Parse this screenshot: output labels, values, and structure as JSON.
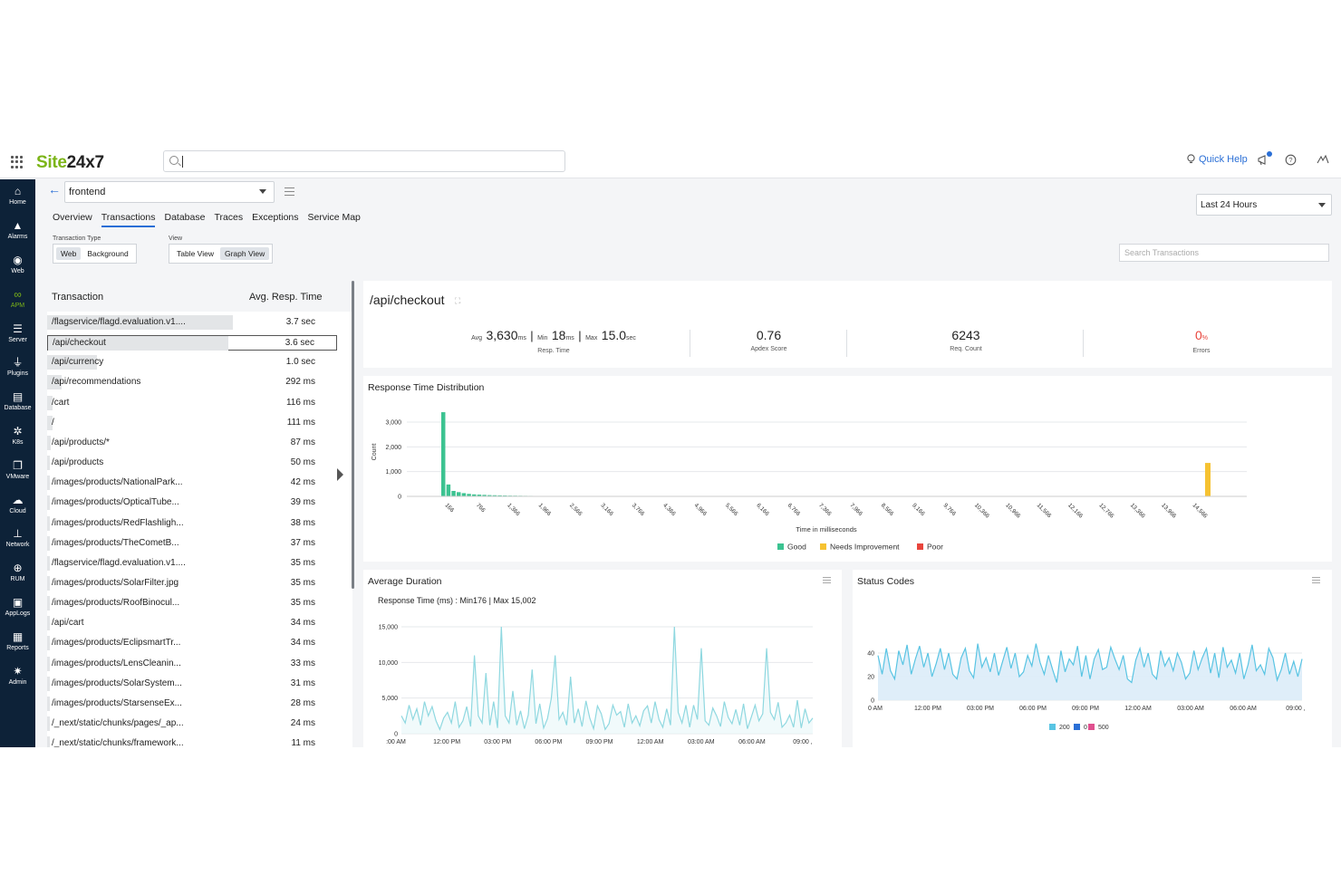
{
  "app": {
    "logo_site": "Site",
    "logo_num": "24x7"
  },
  "topbar": {
    "quick_help": "Quick Help"
  },
  "sidebar": {
    "items": [
      {
        "label": "Home",
        "icon": "home-icon",
        "glyph": "⌂"
      },
      {
        "label": "Alarms",
        "icon": "bell-icon",
        "glyph": "▲"
      },
      {
        "label": "Web",
        "icon": "globe-icon",
        "glyph": "◉"
      },
      {
        "label": "APM",
        "icon": "binoculars-icon",
        "glyph": "∞"
      },
      {
        "label": "Server",
        "icon": "server-icon",
        "glyph": "☰"
      },
      {
        "label": "Plugins",
        "icon": "plug-icon",
        "glyph": "⏚"
      },
      {
        "label": "Database",
        "icon": "database-icon",
        "glyph": "▤"
      },
      {
        "label": "K8s",
        "icon": "helm-icon",
        "glyph": "✲"
      },
      {
        "label": "VMware",
        "icon": "vmware-icon",
        "glyph": "❐"
      },
      {
        "label": "Cloud",
        "icon": "cloud-icon",
        "glyph": "☁"
      },
      {
        "label": "Network",
        "icon": "network-icon",
        "glyph": "⊥"
      },
      {
        "label": "RUM",
        "icon": "rum-globe-icon",
        "glyph": "⊕"
      },
      {
        "label": "AppLogs",
        "icon": "applogs-icon",
        "glyph": "▣"
      },
      {
        "label": "Reports",
        "icon": "reports-icon",
        "glyph": "▦"
      },
      {
        "label": "Admin",
        "icon": "gear-icon",
        "glyph": "✷"
      }
    ],
    "active": "APM"
  },
  "header": {
    "monitor": "frontend",
    "tabs": [
      "Overview",
      "Transactions",
      "Database",
      "Traces",
      "Exceptions",
      "Service Map"
    ],
    "active_tab": "Transactions",
    "transaction_type_label": "Transaction Type",
    "transaction_types": [
      "Web",
      "Background"
    ],
    "active_type": "Web",
    "view_label": "View",
    "views": [
      "Table View",
      "Graph View"
    ],
    "active_view": "Graph View",
    "time_range": "Last 24 Hours",
    "search_placeholder": "Search Transactions"
  },
  "transactions": {
    "col_name": "Transaction",
    "col_time": "Avg. Resp. Time",
    "rows": [
      {
        "name": "/flagservice/flagd.evaluation.v1....",
        "time": "3.7 sec",
        "bar": 1.0
      },
      {
        "name": "/api/checkout",
        "time": "3.6 sec",
        "bar": 0.97,
        "selected": true
      },
      {
        "name": "/api/currency",
        "time": "1.0 sec",
        "bar": 0.27
      },
      {
        "name": "/api/recommendations",
        "time": "292 ms",
        "bar": 0.08
      },
      {
        "name": "/cart",
        "time": "116 ms",
        "bar": 0.03
      },
      {
        "name": "/",
        "time": "111 ms",
        "bar": 0.03
      },
      {
        "name": "/api/products/*",
        "time": "87 ms",
        "bar": 0.02
      },
      {
        "name": "/api/products",
        "time": "50 ms",
        "bar": 0.014
      },
      {
        "name": "/images/products/NationalPark...",
        "time": "42 ms",
        "bar": 0.011
      },
      {
        "name": "/images/products/OpticalTube...",
        "time": "39 ms",
        "bar": 0.01
      },
      {
        "name": "/images/products/RedFlashligh...",
        "time": "38 ms",
        "bar": 0.01
      },
      {
        "name": "/images/products/TheCometB...",
        "time": "37 ms",
        "bar": 0.01
      },
      {
        "name": "/flagservice/flagd.evaluation.v1....",
        "time": "35 ms",
        "bar": 0.009
      },
      {
        "name": "/images/products/SolarFilter.jpg",
        "time": "35 ms",
        "bar": 0.009
      },
      {
        "name": "/images/products/RoofBinocul...",
        "time": "35 ms",
        "bar": 0.009
      },
      {
        "name": "/api/cart",
        "time": "34 ms",
        "bar": 0.009
      },
      {
        "name": "/images/products/EclipsmartTr...",
        "time": "34 ms",
        "bar": 0.009
      },
      {
        "name": "/images/products/LensCleanin...",
        "time": "33 ms",
        "bar": 0.009
      },
      {
        "name": "/images/products/SolarSystem...",
        "time": "31 ms",
        "bar": 0.008
      },
      {
        "name": "/images/products/StarsenseEx...",
        "time": "28 ms",
        "bar": 0.008
      },
      {
        "name": "/_next/static/chunks/pages/_ap...",
        "time": "24 ms",
        "bar": 0.006
      },
      {
        "name": "/_next/static/chunks/framework...",
        "time": "11 ms",
        "bar": 0.003
      }
    ]
  },
  "detail": {
    "title": "/api/checkout",
    "avg_prefix": "Avg",
    "avg_value": "3,630",
    "avg_unit": "ms",
    "min_prefix": "Min",
    "min_value": "18",
    "min_unit": "ms",
    "max_prefix": "Max",
    "max_value": "15.0",
    "max_unit": "sec",
    "resp_label": "Resp. Time",
    "apdex_value": "0.76",
    "apdex_label": "Apdex Score",
    "req_value": "6243",
    "req_label": "Req. Count",
    "errors_value": "0",
    "errors_unit": "%",
    "errors_label": "Errors",
    "colors": {
      "good": "#3cc391",
      "needs": "#f6c231",
      "poor": "#e8453c",
      "err": "#e8453c"
    }
  },
  "chart_data": [
    {
      "type": "bar",
      "title": "Response Time Distribution",
      "xlabel": "Time in milliseconds",
      "ylabel": "Count",
      "ylim": [
        0,
        3000
      ],
      "yticks": [
        "0",
        "1,000",
        "2,000",
        "3,000"
      ],
      "xticks": [
        "166",
        "766",
        "1,366",
        "1,966",
        "2,566",
        "3,166",
        "3,766",
        "4,366",
        "4,966",
        "5,566",
        "6,166",
        "6,766",
        "7,366",
        "7,966",
        "8,566",
        "9,166",
        "9,766",
        "10,366",
        "10,966",
        "11,566",
        "12,166",
        "12,766",
        "13,366",
        "13,966",
        "14,566"
      ],
      "series": [
        {
          "name": "Good",
          "color": "#3cc391",
          "values": [
            3400,
            480,
            220,
            170,
            130,
            100,
            80,
            70,
            60,
            50,
            45,
            40,
            35,
            30,
            28,
            25,
            22,
            20,
            18,
            16,
            14,
            12,
            11,
            10,
            9,
            8,
            7,
            6,
            5,
            5,
            4,
            4,
            3,
            3,
            3,
            2,
            2,
            2,
            2,
            1
          ]
        },
        {
          "name": "Needs Improvement",
          "color": "#f6c231",
          "values": [
            1350
          ]
        },
        {
          "name": "Poor",
          "color": "#e8453c",
          "values": []
        }
      ],
      "legend": "bottom"
    },
    {
      "type": "area",
      "title": "Average Duration",
      "subtitle_prefix": "Response Time (ms) :",
      "min_text": "Min176",
      "max_text": "Max 15,002",
      "ylim": [
        0,
        15000
      ],
      "yticks": [
        "0",
        "5,000",
        "10,000",
        "15,000"
      ],
      "xticks": [
        ":00 AM",
        "12:00 PM",
        "03:00 PM",
        "06:00 PM",
        "09:00 PM",
        "12:00 AM",
        "03:00 AM",
        "06:00 AM",
        "09:00 ,"
      ],
      "series": [
        {
          "name": "Response Time",
          "color": "#8fd8e0",
          "values": [
            2500,
            1500,
            4000,
            2000,
            3500,
            1200,
            4500,
            2500,
            3800,
            1800,
            600,
            2200,
            3000,
            1500,
            4500,
            900,
            1800,
            3800,
            1000,
            11000,
            2500,
            1500,
            8500,
            1200,
            4500,
            800,
            15000,
            2500,
            1500,
            6000,
            1200,
            3200,
            700,
            2600,
            9000,
            1400,
            4200,
            800,
            2100,
            5000,
            11000,
            2000,
            3000,
            1200,
            8000,
            1500,
            3500,
            1000,
            4600,
            2200,
            700,
            3900,
            2800,
            600,
            1400,
            4000,
            2600,
            3100,
            900,
            4200,
            1500,
            2500,
            1100,
            3200,
            3900,
            1500,
            4500,
            2000,
            900,
            3500,
            1200,
            15000,
            3000,
            1500,
            4000,
            900,
            4000,
            2000,
            12000,
            1800,
            1200,
            3600,
            2500,
            1000,
            4500,
            2300,
            1400,
            3400,
            1200,
            4200,
            700,
            2300,
            4000,
            1800,
            2800,
            12000,
            3000,
            2000,
            4400,
            900,
            1500,
            2600,
            900,
            4700,
            800,
            3500,
            1500,
            2200
          ]
        }
      ]
    },
    {
      "type": "area",
      "title": "Status Codes",
      "ylim": [
        0,
        50
      ],
      "yticks": [
        "0",
        "20",
        "40"
      ],
      "xticks": [
        "0 AM",
        "12:00 PM",
        "03:00 PM",
        "06:00 PM",
        "09:00 PM",
        "12:00 AM",
        "03:00 AM",
        "06:00 AM",
        "09:00 ,"
      ],
      "series": [
        {
          "name": "200",
          "color": "#59c4e3",
          "values": [
            38,
            22,
            44,
            25,
            18,
            42,
            30,
            47,
            22,
            35,
            46,
            28,
            40,
            20,
            31,
            44,
            26,
            40,
            22,
            18,
            36,
            44,
            25,
            19,
            48,
            28,
            36,
            24,
            40,
            21,
            33,
            45,
            27,
            40,
            20,
            24,
            38,
            29,
            48,
            32,
            22,
            38,
            26,
            15,
            42,
            24,
            35,
            30,
            46,
            20,
            38,
            18,
            35,
            43,
            26,
            28,
            45,
            35,
            26,
            38,
            18,
            15,
            34,
            44,
            28,
            40,
            22,
            18,
            42,
            29,
            36,
            25,
            40,
            32,
            18,
            23,
            42,
            26,
            36,
            44,
            23,
            40,
            19,
            45,
            28,
            34,
            23,
            40,
            18,
            30,
            47,
            25,
            30,
            22,
            44,
            36,
            17,
            26,
            40,
            22,
            33,
            20,
            35
          ]
        },
        {
          "name": "0",
          "color": "#2a6fd6",
          "values": []
        },
        {
          "name": "500",
          "color": "#e0508f",
          "values": []
        }
      ],
      "legend": "bottom"
    }
  ]
}
